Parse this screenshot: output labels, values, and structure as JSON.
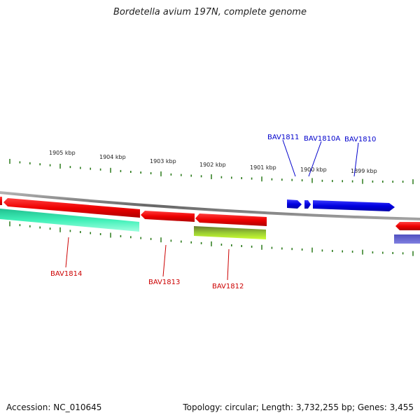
{
  "title": "Bordetella avium 197N, complete genome",
  "accession": "Accession: NC_010645",
  "stats": "Topology: circular; Length: 3,732,255 bp; Genes: 3,455",
  "colors": {
    "forward_gene": "#0000dd",
    "reverse_gene": "#ee0000",
    "tick": "#2a7a1a",
    "backbone": "#888888",
    "label_forward": "#0000cc",
    "label_reverse": "#cc0000"
  },
  "scale_labels": [
    "1905 kbp",
    "1904 kbp",
    "1903 kbp",
    "1902 kbp",
    "1901 kbp",
    "1900 kbp",
    "1899 kbp"
  ],
  "gene_labels": {
    "forward": [
      "BAV1811",
      "BAV1810A",
      "BAV1810"
    ],
    "reverse": [
      "BAV1814",
      "BAV1813",
      "BAV1812"
    ]
  }
}
